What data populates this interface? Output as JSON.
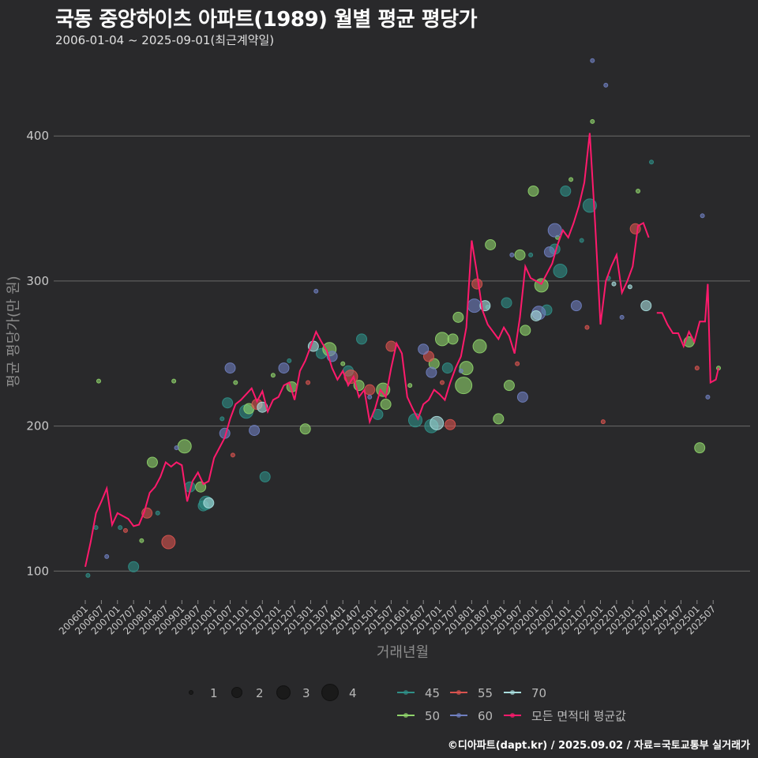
{
  "header": {
    "title": "국동 중앙하이츠 아파트(1989) 월별 평균 평당가",
    "subtitle": "2006-01-04 ~ 2025-09-01(최근계약일)"
  },
  "caption": "©디아파트(dapt.kr) / 2025.09.02 / 자료=국토교통부 실거래가",
  "colors": {
    "background": "#29292b",
    "grid": "#6a6a6a",
    "avg_line": "#ff1a6c",
    "area_45": "#2f8f87",
    "area_50": "#8fd46b",
    "area_55": "#d9534f",
    "area_60": "#6f7fc0",
    "area_70": "#a9dede"
  },
  "chart_data": {
    "type": "scatter",
    "title": "국동 중앙하이츠 아파트(1989) 월별 평균 평당가",
    "xlabel": "거래년월",
    "ylabel": "평균 평당가(만 원)",
    "ylim": [
      80,
      460
    ],
    "yticks": [
      100,
      200,
      300,
      400
    ],
    "x_range": [
      "2006-01",
      "2025-09"
    ],
    "xtick_labels": [
      "200601",
      "200607",
      "200701",
      "200707",
      "200801",
      "200807",
      "200901",
      "200907",
      "201001",
      "201007",
      "201101",
      "201107",
      "201201",
      "201207",
      "201301",
      "201307",
      "201401",
      "201407",
      "201501",
      "201507",
      "201601",
      "201607",
      "201701",
      "201707",
      "201801",
      "201807",
      "201901",
      "201907",
      "202001",
      "202007",
      "202101",
      "202107",
      "202201",
      "202207",
      "202301",
      "202307",
      "202401",
      "202407",
      "202501",
      "202507"
    ],
    "grid": true,
    "size_legend": {
      "values": [
        1,
        2,
        3,
        4
      ]
    },
    "color_legend": [
      "45",
      "50",
      "55",
      "60",
      "70",
      "모든 면적대 평균값"
    ],
    "avg_series": {
      "name": "모든 면적대 평균값",
      "points": [
        [
          "2006-01",
          103
        ],
        [
          "2006-03",
          120
        ],
        [
          "2006-05",
          140
        ],
        [
          "2006-07",
          148
        ],
        [
          "2006-09",
          157
        ],
        [
          "2006-11",
          132
        ],
        [
          "2007-01",
          140
        ],
        [
          "2007-03",
          138
        ],
        [
          "2007-05",
          136
        ],
        [
          "2007-07",
          131
        ],
        [
          "2007-09",
          132
        ],
        [
          "2007-11",
          141
        ],
        [
          "2008-01",
          154
        ],
        [
          "2008-03",
          158
        ],
        [
          "2008-05",
          165
        ],
        [
          "2008-07",
          175
        ],
        [
          "2008-09",
          172
        ],
        [
          "2008-11",
          175
        ],
        [
          "2009-01",
          173
        ],
        [
          "2009-03",
          148
        ],
        [
          "2009-05",
          162
        ],
        [
          "2009-07",
          168
        ],
        [
          "2009-09",
          160
        ],
        [
          "2009-11",
          162
        ],
        [
          "2010-01",
          178
        ],
        [
          "2010-03",
          185
        ],
        [
          "2010-05",
          192
        ],
        [
          "2010-07",
          205
        ],
        [
          "2010-09",
          215
        ],
        [
          "2010-11",
          218
        ],
        [
          "2011-01",
          222
        ],
        [
          "2011-03",
          226
        ],
        [
          "2011-05",
          217
        ],
        [
          "2011-07",
          224
        ],
        [
          "2011-09",
          210
        ],
        [
          "2011-11",
          218
        ],
        [
          "2012-01",
          220
        ],
        [
          "2012-03",
          228
        ],
        [
          "2012-05",
          230
        ],
        [
          "2012-07",
          218
        ],
        [
          "2012-09",
          238
        ],
        [
          "2012-11",
          245
        ],
        [
          "2013-01",
          255
        ],
        [
          "2013-03",
          265
        ],
        [
          "2013-05",
          258
        ],
        [
          "2013-07",
          252
        ],
        [
          "2013-09",
          240
        ],
        [
          "2013-11",
          232
        ],
        [
          "2014-01",
          238
        ],
        [
          "2014-03",
          228
        ],
        [
          "2014-05",
          234
        ],
        [
          "2014-07",
          220
        ],
        [
          "2014-09",
          225
        ],
        [
          "2014-11",
          203
        ],
        [
          "2015-01",
          212
        ],
        [
          "2015-03",
          225
        ],
        [
          "2015-05",
          220
        ],
        [
          "2015-07",
          240
        ],
        [
          "2015-09",
          257
        ],
        [
          "2015-11",
          250
        ],
        [
          "2016-01",
          220
        ],
        [
          "2016-03",
          212
        ],
        [
          "2016-05",
          205
        ],
        [
          "2016-07",
          215
        ],
        [
          "2016-09",
          218
        ],
        [
          "2016-11",
          225
        ],
        [
          "2017-01",
          222
        ],
        [
          "2017-03",
          218
        ],
        [
          "2017-05",
          230
        ],
        [
          "2017-07",
          240
        ],
        [
          "2017-09",
          248
        ],
        [
          "2017-11",
          268
        ],
        [
          "2018-01",
          328
        ],
        [
          "2018-03",
          305
        ],
        [
          "2018-05",
          280
        ],
        [
          "2018-07",
          270
        ],
        [
          "2018-09",
          265
        ],
        [
          "2018-11",
          260
        ],
        [
          "2019-01",
          268
        ],
        [
          "2019-03",
          262
        ],
        [
          "2019-05",
          250
        ],
        [
          "2019-07",
          275
        ],
        [
          "2019-09",
          310
        ],
        [
          "2019-11",
          302
        ],
        [
          "2020-01",
          300
        ],
        [
          "2020-03",
          298
        ],
        [
          "2020-05",
          305
        ],
        [
          "2020-07",
          312
        ],
        [
          "2020-09",
          325
        ],
        [
          "2020-11",
          335
        ],
        [
          "2021-01",
          330
        ],
        [
          "2021-03",
          340
        ],
        [
          "2021-05",
          352
        ],
        [
          "2021-07",
          368
        ],
        [
          "2021-09",
          402
        ],
        [
          "2021-11",
          340
        ],
        [
          "2022-01",
          270
        ],
        [
          "2022-03",
          300
        ],
        [
          "2022-05",
          310
        ],
        [
          "2022-07",
          318
        ],
        [
          "2022-09",
          292
        ],
        [
          "2022-11",
          300
        ],
        [
          "2023-01",
          310
        ],
        [
          "2023-03",
          338
        ],
        [
          "2023-05",
          340
        ],
        [
          "2023-07",
          330
        ],
        null,
        [
          "2023-10",
          278
        ],
        [
          "2023-12",
          278
        ],
        [
          "2024-02",
          270
        ],
        [
          "2024-04",
          264
        ],
        [
          "2024-06",
          264
        ],
        [
          "2024-08",
          255
        ],
        [
          "2024-10",
          265
        ],
        [
          "2024-12",
          258
        ],
        [
          "2025-02",
          272
        ],
        [
          "2025-04",
          272
        ],
        [
          "2025-05",
          298
        ],
        [
          "2025-06",
          230
        ],
        [
          "2025-08",
          232
        ],
        [
          "2025-09",
          240
        ]
      ]
    },
    "series": [
      {
        "name": "45",
        "points": [
          [
            "2006-02",
            97,
            1
          ],
          [
            "2006-05",
            130,
            1
          ],
          [
            "2007-02",
            130,
            1
          ],
          [
            "2007-07",
            103,
            2
          ],
          [
            "2008-04",
            140,
            1
          ],
          [
            "2009-04",
            158,
            2
          ],
          [
            "2009-09",
            145,
            2
          ],
          [
            "2009-10",
            147,
            3
          ],
          [
            "2010-04",
            205,
            1
          ],
          [
            "2010-06",
            216,
            2
          ],
          [
            "2011-01",
            210,
            3
          ],
          [
            "2011-08",
            165,
            2
          ],
          [
            "2012-05",
            245,
            1
          ],
          [
            "2013-05",
            250,
            2
          ],
          [
            "2014-03",
            238,
            2
          ],
          [
            "2014-08",
            260,
            2
          ],
          [
            "2015-02",
            208,
            2
          ],
          [
            "2016-04",
            204,
            3
          ],
          [
            "2016-10",
            200,
            3
          ],
          [
            "2017-04",
            240,
            2
          ],
          [
            "2018-07",
            282,
            1
          ],
          [
            "2019-02",
            285,
            2
          ],
          [
            "2019-11",
            318,
            1
          ],
          [
            "2020-05",
            280,
            2
          ],
          [
            "2020-08",
            322,
            2
          ],
          [
            "2020-10",
            307,
            3
          ],
          [
            "2020-12",
            362,
            2
          ],
          [
            "2021-06",
            328,
            1
          ],
          [
            "2021-09",
            352,
            3
          ],
          [
            "2022-04",
            302,
            1
          ],
          [
            "2023-08",
            382,
            1
          ]
        ]
      },
      {
        "name": "50",
        "points": [
          [
            "2006-06",
            231,
            1
          ],
          [
            "2007-10",
            121,
            1
          ],
          [
            "2008-02",
            175,
            2
          ],
          [
            "2008-10",
            231,
            1
          ],
          [
            "2009-02",
            186,
            3
          ],
          [
            "2009-08",
            158,
            2
          ],
          [
            "2010-09",
            230,
            1
          ],
          [
            "2011-02",
            212,
            2
          ],
          [
            "2011-11",
            235,
            1
          ],
          [
            "2012-06",
            227,
            2
          ],
          [
            "2012-11",
            198,
            2
          ],
          [
            "2013-08",
            253,
            3
          ],
          [
            "2014-01",
            243,
            1
          ],
          [
            "2014-07",
            228,
            2
          ],
          [
            "2015-04",
            225,
            3
          ],
          [
            "2015-05",
            215,
            2
          ],
          [
            "2016-02",
            228,
            1
          ],
          [
            "2016-11",
            243,
            2
          ],
          [
            "2017-02",
            260,
            3
          ],
          [
            "2017-06",
            260,
            2
          ],
          [
            "2017-08",
            275,
            2
          ],
          [
            "2017-10",
            228,
            4
          ],
          [
            "2017-11",
            240,
            3
          ],
          [
            "2018-04",
            255,
            3
          ],
          [
            "2018-08",
            325,
            2
          ],
          [
            "2018-11",
            205,
            2
          ],
          [
            "2019-03",
            228,
            2
          ],
          [
            "2019-07",
            318,
            2
          ],
          [
            "2019-09",
            266,
            2
          ],
          [
            "2019-12",
            362,
            2
          ],
          [
            "2020-03",
            297,
            3
          ],
          [
            "2020-09",
            330,
            1
          ],
          [
            "2021-02",
            370,
            1
          ],
          [
            "2021-10",
            410,
            1
          ],
          [
            "2023-03",
            362,
            1
          ],
          [
            "2024-10",
            258,
            2
          ],
          [
            "2025-02",
            185,
            2
          ],
          [
            "2025-09",
            240,
            1
          ]
        ]
      },
      {
        "name": "55",
        "points": [
          [
            "2007-04",
            128,
            1
          ],
          [
            "2007-12",
            140,
            2
          ],
          [
            "2008-08",
            120,
            3
          ],
          [
            "2010-08",
            180,
            1
          ],
          [
            "2011-05",
            215,
            2
          ],
          [
            "2012-12",
            230,
            1
          ],
          [
            "2014-04",
            234,
            3
          ],
          [
            "2014-11",
            225,
            2
          ],
          [
            "2015-07",
            255,
            2
          ],
          [
            "2016-09",
            248,
            2
          ],
          [
            "2017-02",
            230,
            1
          ],
          [
            "2017-05",
            201,
            2
          ],
          [
            "2018-03",
            298,
            2
          ],
          [
            "2019-06",
            243,
            1
          ],
          [
            "2021-08",
            268,
            1
          ],
          [
            "2022-02",
            203,
            1
          ],
          [
            "2023-02",
            336,
            2
          ],
          [
            "2025-01",
            240,
            1
          ]
        ]
      },
      {
        "name": "60",
        "points": [
          [
            "2006-09",
            110,
            1
          ],
          [
            "2008-11",
            185,
            1
          ],
          [
            "2010-05",
            195,
            2
          ],
          [
            "2010-07",
            240,
            2
          ],
          [
            "2011-04",
            197,
            2
          ],
          [
            "2012-03",
            240,
            2
          ],
          [
            "2013-03",
            293,
            1
          ],
          [
            "2013-09",
            248,
            2
          ],
          [
            "2014-11",
            220,
            1
          ],
          [
            "2016-07",
            253,
            2
          ],
          [
            "2016-10",
            237,
            2
          ],
          [
            "2017-09",
            238,
            1
          ],
          [
            "2018-02",
            283,
            3
          ],
          [
            "2019-04",
            318,
            1
          ],
          [
            "2019-08",
            220,
            2
          ],
          [
            "2020-02",
            278,
            3
          ],
          [
            "2020-06",
            320,
            2
          ],
          [
            "2020-08",
            335,
            3
          ],
          [
            "2021-04",
            283,
            2
          ],
          [
            "2021-10",
            452,
            1
          ],
          [
            "2022-03",
            435,
            1
          ],
          [
            "2022-09",
            275,
            1
          ],
          [
            "2025-03",
            345,
            1
          ],
          [
            "2025-05",
            220,
            1
          ]
        ]
      },
      {
        "name": "70",
        "points": [
          [
            "2009-11",
            147,
            2
          ],
          [
            "2011-07",
            213,
            2
          ],
          [
            "2013-02",
            255,
            2
          ],
          [
            "2016-12",
            202,
            3
          ],
          [
            "2018-06",
            283,
            2
          ],
          [
            "2020-01",
            276,
            2
          ],
          [
            "2022-06",
            298,
            1
          ],
          [
            "2022-12",
            296,
            1
          ],
          [
            "2023-06",
            283,
            2
          ]
        ]
      }
    ]
  }
}
